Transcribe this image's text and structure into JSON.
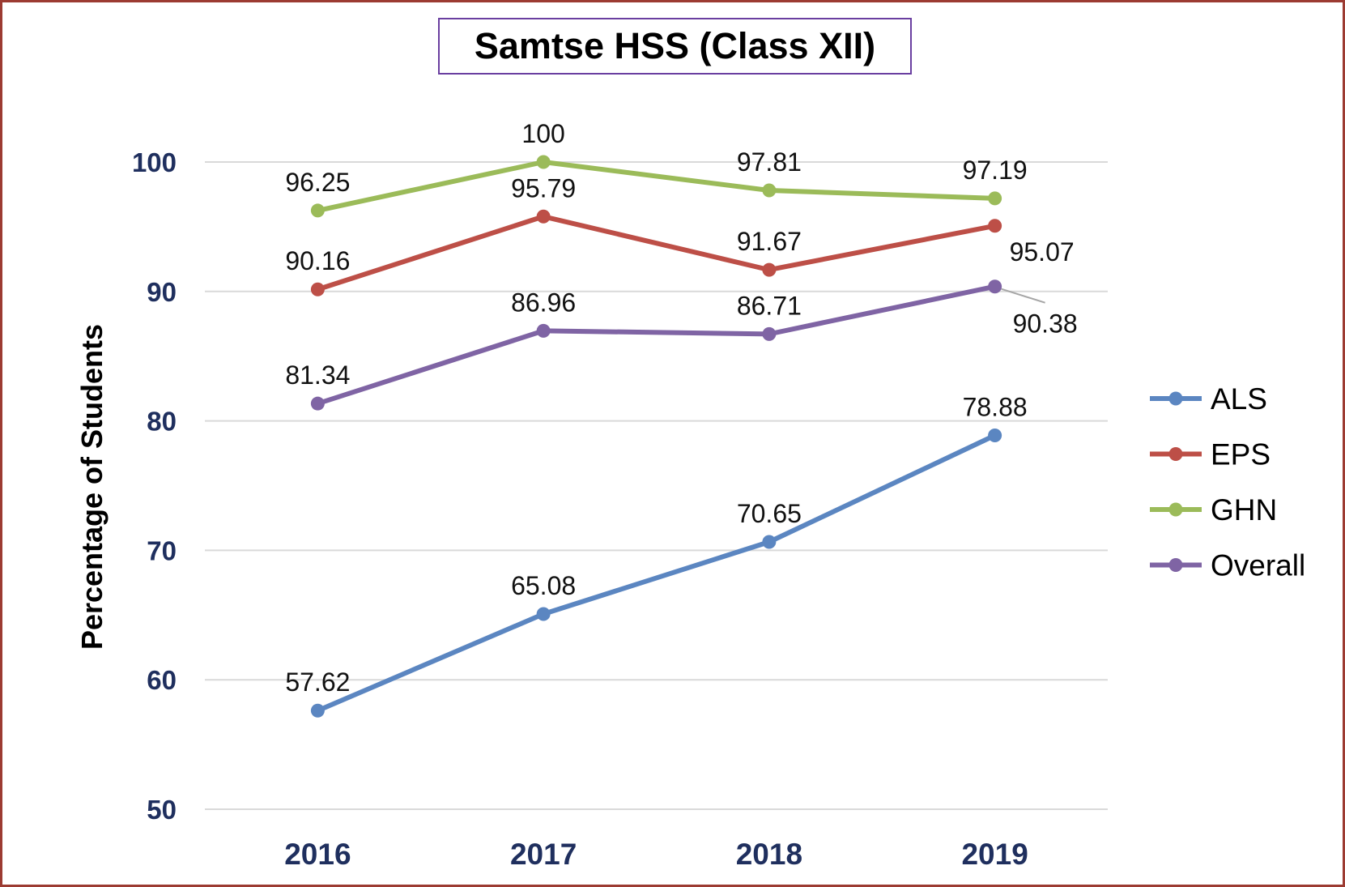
{
  "title": "Samtse HSS (Class XII)",
  "chart_data": {
    "type": "line",
    "title": "Samtse HSS (Class XII)",
    "xlabel": "",
    "ylabel": "Percentage of Students",
    "categories": [
      "2016",
      "2017",
      "2018",
      "2019"
    ],
    "ylim": [
      50,
      100
    ],
    "yticks": [
      "50",
      "60",
      "70",
      "80",
      "90",
      "100"
    ],
    "grid": true,
    "legend_position": "right",
    "series": [
      {
        "name": "ALS",
        "color": "#5b86c1",
        "values": [
          57.62,
          65.08,
          70.65,
          78.88
        ],
        "labels": [
          "57.62",
          "65.08",
          "70.65",
          "78.88"
        ]
      },
      {
        "name": "EPS",
        "color": "#bd4f47",
        "values": [
          90.16,
          95.79,
          91.67,
          95.07
        ],
        "labels": [
          "90.16",
          "95.79",
          "91.67",
          "95.07"
        ]
      },
      {
        "name": "GHN",
        "color": "#9bbb59",
        "values": [
          96.25,
          100,
          97.81,
          97.19
        ],
        "labels": [
          "96.25",
          "100",
          "97.81",
          "97.19"
        ]
      },
      {
        "name": "Overall",
        "color": "#7f64a4",
        "values": [
          81.34,
          86.96,
          86.71,
          90.38
        ],
        "labels": [
          "81.34",
          "86.96",
          "86.71",
          "90.38"
        ]
      }
    ]
  }
}
